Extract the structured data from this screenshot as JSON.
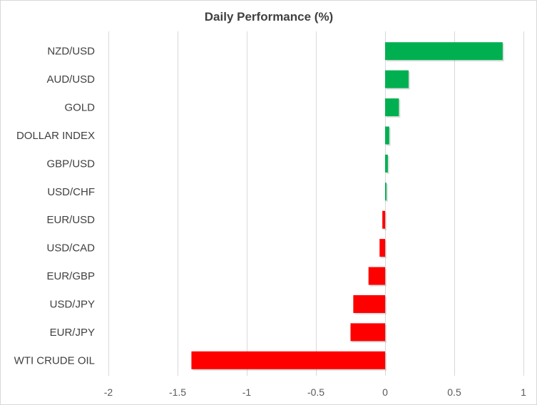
{
  "chart_data": {
    "type": "bar",
    "orientation": "horizontal",
    "title": "Daily Performance (%)",
    "xlabel": "",
    "ylabel": "",
    "categories": [
      "NZD/USD",
      "AUD/USD",
      "GOLD",
      "DOLLAR INDEX",
      "GBP/USD",
      "USD/CHF",
      "EUR/USD",
      "USD/CAD",
      "EUR/GBP",
      "USD/JPY",
      "EUR/JPY",
      "WTI CRUDE OIL"
    ],
    "values": [
      0.85,
      0.17,
      0.1,
      0.03,
      0.02,
      0.01,
      -0.02,
      -0.04,
      -0.12,
      -0.23,
      -0.25,
      -1.4
    ],
    "xlim": [
      -2,
      1
    ],
    "xticks": [
      -2,
      -1.5,
      -1,
      -0.5,
      0,
      0.5,
      1
    ],
    "xtick_labels": [
      "-2",
      "-1.5",
      "-1",
      "-0.5",
      "0",
      "0.5",
      "1"
    ],
    "grid": "vertical",
    "legend": "none",
    "colors": {
      "positive": "#00b050",
      "negative": "#ff0000",
      "grid": "#d9d9d9",
      "text": "#404040"
    }
  }
}
